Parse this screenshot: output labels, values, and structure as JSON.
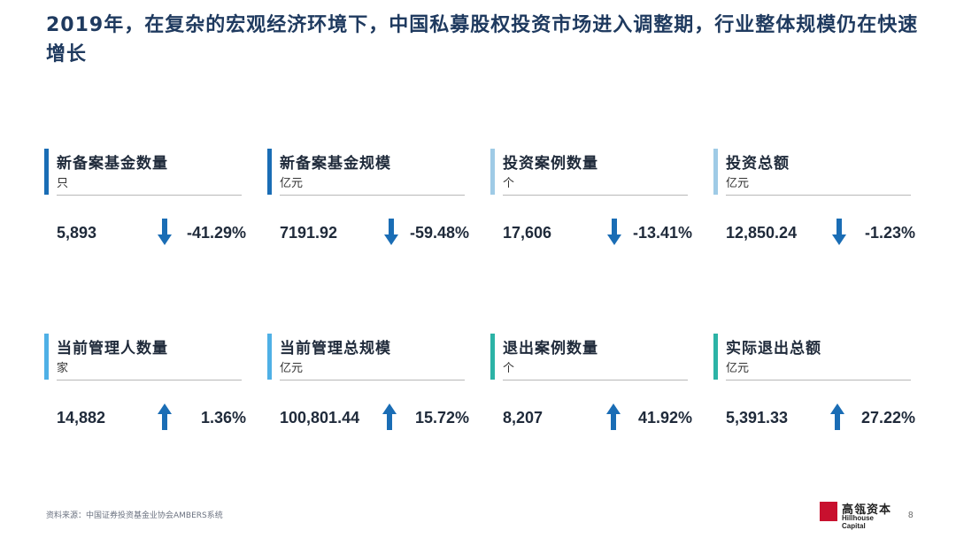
{
  "title": "2019年，在复杂的宏观经济环境下，中国私募股权投资市场进入调整期，行业整体规模仍在快速增长",
  "colors": {
    "dark_blue": "#1a6db5",
    "light_blue": "#9fcbe6",
    "sky_blue": "#4fb0e6",
    "teal": "#2cb3a6",
    "arrow_blue": "#1a6db5",
    "logo_red": "#c8102e"
  },
  "metrics": [
    {
      "label": "新备案基金数量",
      "unit": "只",
      "value": "5,893",
      "direction": "down",
      "change": "-41.29%",
      "bar_color": "#1a6db5"
    },
    {
      "label": "新备案基金规模",
      "unit": "亿元",
      "value": "7191.92",
      "direction": "down",
      "change": "-59.48%",
      "bar_color": "#1a6db5"
    },
    {
      "label": "投资案例数量",
      "unit": "个",
      "value": "17,606",
      "direction": "down",
      "change": "-13.41%",
      "bar_color": "#9fcbe6"
    },
    {
      "label": "投资总额",
      "unit": "亿元",
      "value": "12,850.24",
      "direction": "down",
      "change": "-1.23%",
      "bar_color": "#9fcbe6"
    },
    {
      "label": "当前管理人数量",
      "unit": "家",
      "value": "14,882",
      "direction": "up",
      "change": "1.36%",
      "bar_color": "#4fb0e6"
    },
    {
      "label": "当前管理总规模",
      "unit": "亿元",
      "value": "100,801.44",
      "direction": "up",
      "change": "15.72%",
      "bar_color": "#4fb0e6"
    },
    {
      "label": "退出案例数量",
      "unit": "个",
      "value": "8,207",
      "direction": "up",
      "change": "41.92%",
      "bar_color": "#2cb3a6"
    },
    {
      "label": "实际退出总额",
      "unit": "亿元",
      "value": "5,391.33",
      "direction": "up",
      "change": "27.22%",
      "bar_color": "#2cb3a6"
    }
  ],
  "footer": {
    "source": "资料来源：中国证券投资基金业协会AMBERS系统",
    "logo_cn": "高瓴资本",
    "logo_en": "Hillhouse Capital",
    "page_number": "8"
  }
}
